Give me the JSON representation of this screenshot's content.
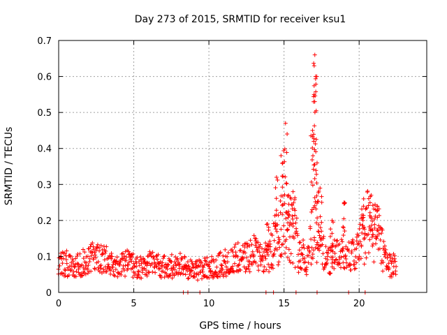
{
  "chart_data": {
    "type": "scatter",
    "title": "Day 273 of 2015, SRMTID for receiver ksu1",
    "xlabel": "GPS time / hours",
    "ylabel": "SRMTID / TECUs",
    "xlim": [
      0,
      24.5
    ],
    "ylim": [
      0,
      0.7
    ],
    "xticks": [
      0,
      5,
      10,
      15,
      20
    ],
    "yticks": [
      0,
      0.1,
      0.2,
      0.3,
      0.4,
      0.5,
      0.6,
      0.7
    ],
    "grid": true,
    "marker": "+",
    "marker_color": "#ff0000",
    "series": [
      {
        "name": "SRMTID",
        "envelope_note": "dense cloud of samples; mean level (hour, TECU) with approximate spread",
        "mean_level": [
          [
            0.0,
            0.08
          ],
          [
            0.5,
            0.075
          ],
          [
            1.0,
            0.07
          ],
          [
            1.5,
            0.08
          ],
          [
            2.0,
            0.09
          ],
          [
            2.5,
            0.1
          ],
          [
            3.0,
            0.09
          ],
          [
            3.5,
            0.08
          ],
          [
            4.0,
            0.07
          ],
          [
            4.5,
            0.08
          ],
          [
            5.0,
            0.075
          ],
          [
            5.5,
            0.07
          ],
          [
            6.0,
            0.08
          ],
          [
            6.5,
            0.075
          ],
          [
            7.0,
            0.07
          ],
          [
            7.5,
            0.07
          ],
          [
            8.0,
            0.08
          ],
          [
            8.5,
            0.07
          ],
          [
            9.0,
            0.06
          ],
          [
            9.5,
            0.065
          ],
          [
            10.0,
            0.07
          ],
          [
            10.5,
            0.075
          ],
          [
            11.0,
            0.08
          ],
          [
            11.5,
            0.085
          ],
          [
            12.0,
            0.09
          ],
          [
            12.5,
            0.095
          ],
          [
            13.0,
            0.11
          ],
          [
            13.5,
            0.09
          ],
          [
            14.0,
            0.1
          ],
          [
            14.5,
            0.15
          ],
          [
            15.0,
            0.2
          ],
          [
            15.5,
            0.18
          ],
          [
            16.0,
            0.12
          ],
          [
            16.5,
            0.08
          ],
          [
            17.0,
            0.2
          ],
          [
            17.5,
            0.12
          ],
          [
            18.0,
            0.09
          ],
          [
            18.5,
            0.1
          ],
          [
            19.0,
            0.12
          ],
          [
            19.5,
            0.1
          ],
          [
            20.0,
            0.12
          ],
          [
            20.5,
            0.19
          ],
          [
            21.0,
            0.17
          ],
          [
            21.5,
            0.13
          ],
          [
            22.0,
            0.08
          ],
          [
            22.5,
            0.07
          ]
        ],
        "peaks": [
          [
            13.9,
            0.19
          ],
          [
            14.5,
            0.32
          ],
          [
            14.8,
            0.38
          ],
          [
            15.1,
            0.47
          ],
          [
            15.3,
            0.27
          ],
          [
            15.6,
            0.28
          ],
          [
            16.9,
            0.45
          ],
          [
            17.0,
            0.55
          ],
          [
            17.05,
            0.66
          ],
          [
            17.1,
            0.6
          ],
          [
            17.2,
            0.36
          ],
          [
            17.4,
            0.29
          ],
          [
            18.2,
            0.2
          ],
          [
            19.0,
            0.25
          ],
          [
            20.3,
            0.26
          ],
          [
            20.8,
            0.27
          ],
          [
            21.2,
            0.24
          ]
        ],
        "zero_values_at": [
          8.3,
          8.6,
          9.4,
          13.8,
          14.3,
          15.8,
          17.2,
          19.3,
          20.4
        ]
      }
    ]
  }
}
